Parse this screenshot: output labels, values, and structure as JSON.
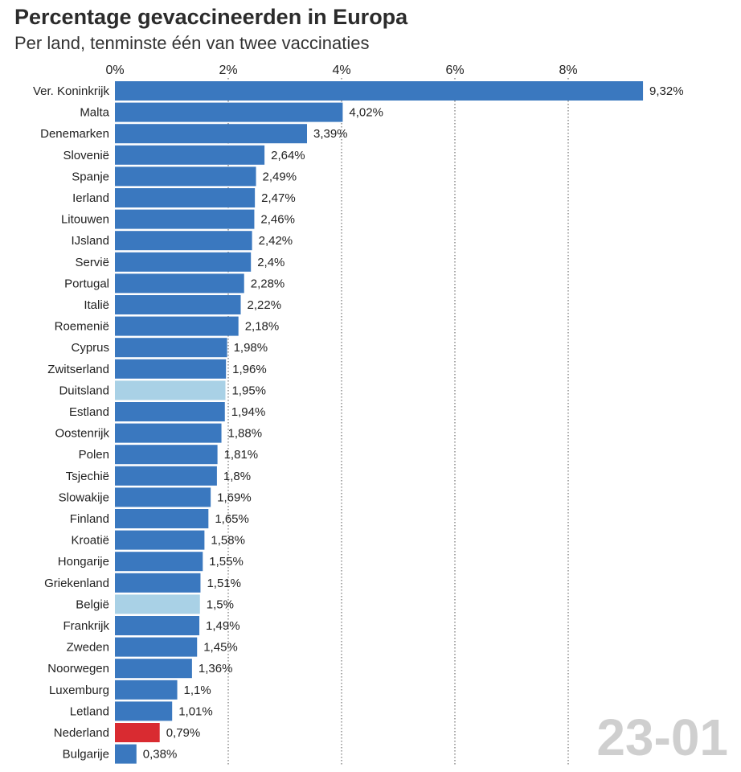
{
  "title": "Percentage gevaccineerden in Europa",
  "subtitle": "Per land, tenminste één van twee vaccinaties",
  "date_stamp": "23-01",
  "colors": {
    "default": "#3a78bf",
    "highlight": "#a9d1e6",
    "netherlands": "#d92b31"
  },
  "chart_data": {
    "type": "bar",
    "orientation": "horizontal",
    "title": "Percentage gevaccineerden in Europa",
    "subtitle": "Per land, tenminste één van twee vaccinaties",
    "xlim": [
      0,
      9.32
    ],
    "xticks": [
      0,
      2,
      4,
      6,
      8
    ],
    "xtick_labels": [
      "0%",
      "2%",
      "4%",
      "6%",
      "8%"
    ],
    "axis_position": "top",
    "grid": "vertical dotted",
    "categories": [
      "Ver. Koninkrijk",
      "Malta",
      "Denemarken",
      "Slovenië",
      "Spanje",
      "Ierland",
      "Litouwen",
      "IJsland",
      "Servië",
      "Portugal",
      "Italië",
      "Roemenië",
      "Cyprus",
      "Zwitserland",
      "Duitsland",
      "Estland",
      "Oostenrijk",
      "Polen",
      "Tsjechië",
      "Slowakije",
      "Finland",
      "Kroatië",
      "Hongarije",
      "Griekenland",
      "België",
      "Frankrijk",
      "Zweden",
      "Noorwegen",
      "Luxemburg",
      "Letland",
      "Nederland",
      "Bulgarije"
    ],
    "values": [
      9.32,
      4.02,
      3.39,
      2.64,
      2.49,
      2.47,
      2.46,
      2.42,
      2.4,
      2.28,
      2.22,
      2.18,
      1.98,
      1.96,
      1.95,
      1.94,
      1.88,
      1.81,
      1.8,
      1.69,
      1.65,
      1.58,
      1.55,
      1.51,
      1.5,
      1.49,
      1.45,
      1.36,
      1.1,
      1.01,
      0.79,
      0.38
    ],
    "value_labels": [
      "9,32%",
      "4,02%",
      "3,39%",
      "2,64%",
      "2,49%",
      "2,47%",
      "2,46%",
      "2,42%",
      "2,4%",
      "2,28%",
      "2,22%",
      "2,18%",
      "1,98%",
      "1,96%",
      "1,95%",
      "1,94%",
      "1,88%",
      "1,81%",
      "1,8%",
      "1,69%",
      "1,65%",
      "1,58%",
      "1,55%",
      "1,51%",
      "1,5%",
      "1,49%",
      "1,45%",
      "1,36%",
      "1,1%",
      "1,01%",
      "0,79%",
      "0,38%"
    ],
    "bar_colors": [
      "default",
      "default",
      "default",
      "default",
      "default",
      "default",
      "default",
      "default",
      "default",
      "default",
      "default",
      "default",
      "default",
      "default",
      "highlight",
      "default",
      "default",
      "default",
      "default",
      "default",
      "default",
      "default",
      "default",
      "default",
      "highlight",
      "default",
      "default",
      "default",
      "default",
      "default",
      "netherlands",
      "default"
    ]
  }
}
